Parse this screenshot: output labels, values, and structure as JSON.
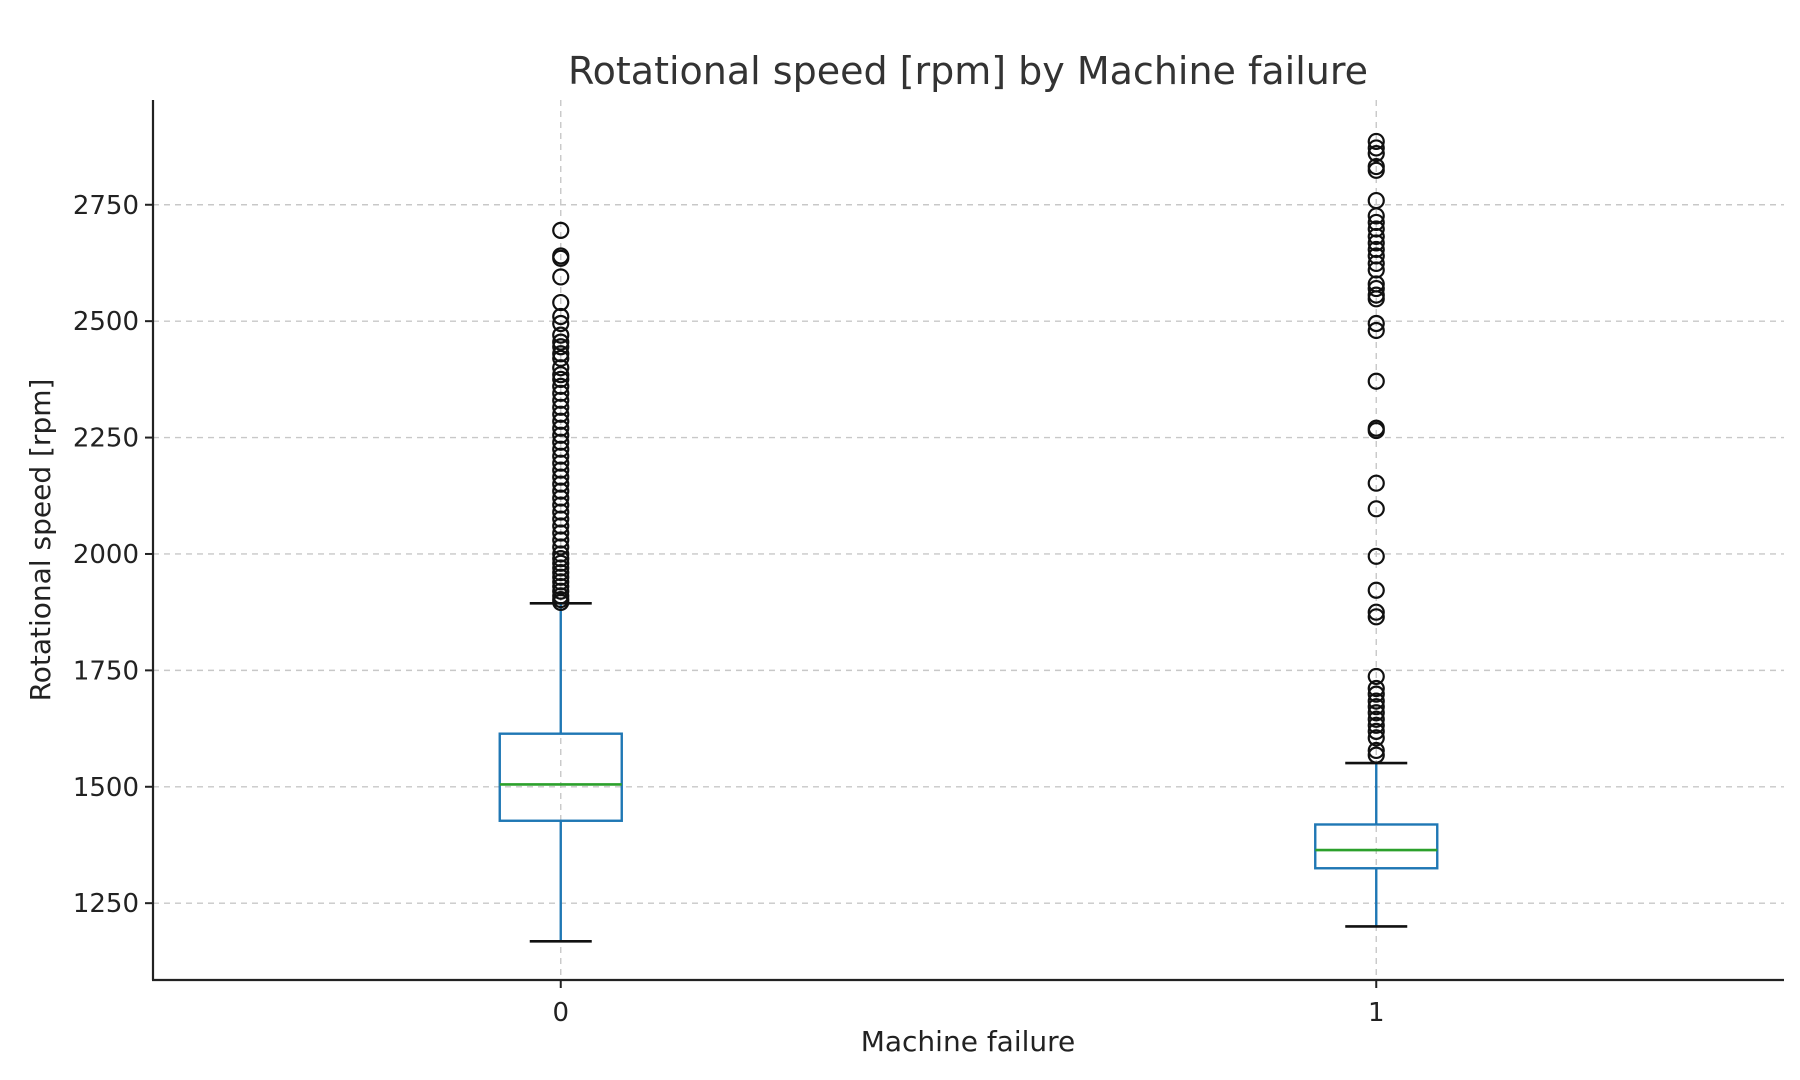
{
  "chart_data": {
    "type": "box",
    "title": "Rotational speed [rpm] by Machine failure",
    "xlabel": "Machine failure",
    "ylabel": "Rotational speed [rpm]",
    "categories": [
      "0",
      "1"
    ],
    "ylim": [
      1085,
      2975
    ],
    "yticks": [
      1250,
      1500,
      1750,
      2000,
      2250,
      2500,
      2750
    ],
    "grid": true,
    "boxes": [
      {
        "category": "0",
        "whisker_low": 1168,
        "q1": 1427,
        "median": 1505,
        "q3": 1614,
        "whisker_high": 1894,
        "fliers": [
          2695,
          2640,
          2635,
          2595,
          2540,
          2510,
          2495,
          2470,
          2455,
          2445,
          2430,
          2420,
          2400,
          2385,
          2375,
          2360,
          2345,
          2330,
          2315,
          2300,
          2285,
          2270,
          2255,
          2240,
          2225,
          2210,
          2195,
          2180,
          2165,
          2150,
          2135,
          2120,
          2105,
          2090,
          2075,
          2060,
          2045,
          2030,
          2015,
          2000,
          1990,
          1980,
          1970,
          1960,
          1950,
          1940,
          1930,
          1920,
          1910,
          1902,
          1896
        ]
      },
      {
        "category": "1",
        "whisker_low": 1200,
        "q1": 1325,
        "median": 1364,
        "q3": 1419,
        "whisker_high": 1551,
        "fliers": [
          2886,
          2872,
          2860,
          2832,
          2824,
          2759,
          2726,
          2712,
          2698,
          2682,
          2668,
          2654,
          2640,
          2624,
          2610,
          2580,
          2570,
          2556,
          2548,
          2495,
          2480,
          2371,
          2270,
          2265,
          2152,
          2097,
          1995,
          1922,
          1875,
          1865,
          1737,
          1711,
          1699,
          1684,
          1672,
          1659,
          1645,
          1632,
          1619,
          1605,
          1578,
          1568
        ]
      }
    ]
  }
}
